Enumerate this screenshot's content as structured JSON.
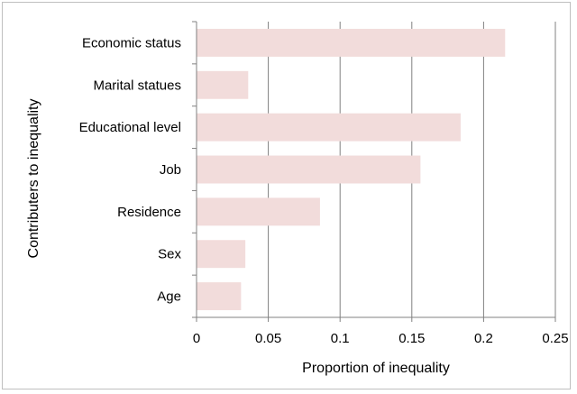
{
  "chart_data": {
    "type": "bar",
    "orientation": "horizontal",
    "categories": [
      "Economic status",
      "Marital statues",
      "Educational level",
      "Job",
      "Residence",
      "Sex",
      "Age"
    ],
    "values": [
      0.215,
      0.036,
      0.184,
      0.156,
      0.086,
      0.034,
      0.031
    ],
    "xlabel": "Proportion of inequality",
    "ylabel": "Contributers  to inequality",
    "xlim": [
      0,
      0.25
    ],
    "xticks": [
      "0",
      "0.05",
      "0.1",
      "0.15",
      "0.2",
      "0.25"
    ],
    "xtick_values": [
      0,
      0.05,
      0.1,
      0.15,
      0.2,
      0.25
    ],
    "grid": "vertical gridlines",
    "legend": "none",
    "colors": {
      "bar": "#f2dcdb",
      "grid": "#808080",
      "axis": "#808080",
      "frame": "#bfbfbf"
    }
  }
}
